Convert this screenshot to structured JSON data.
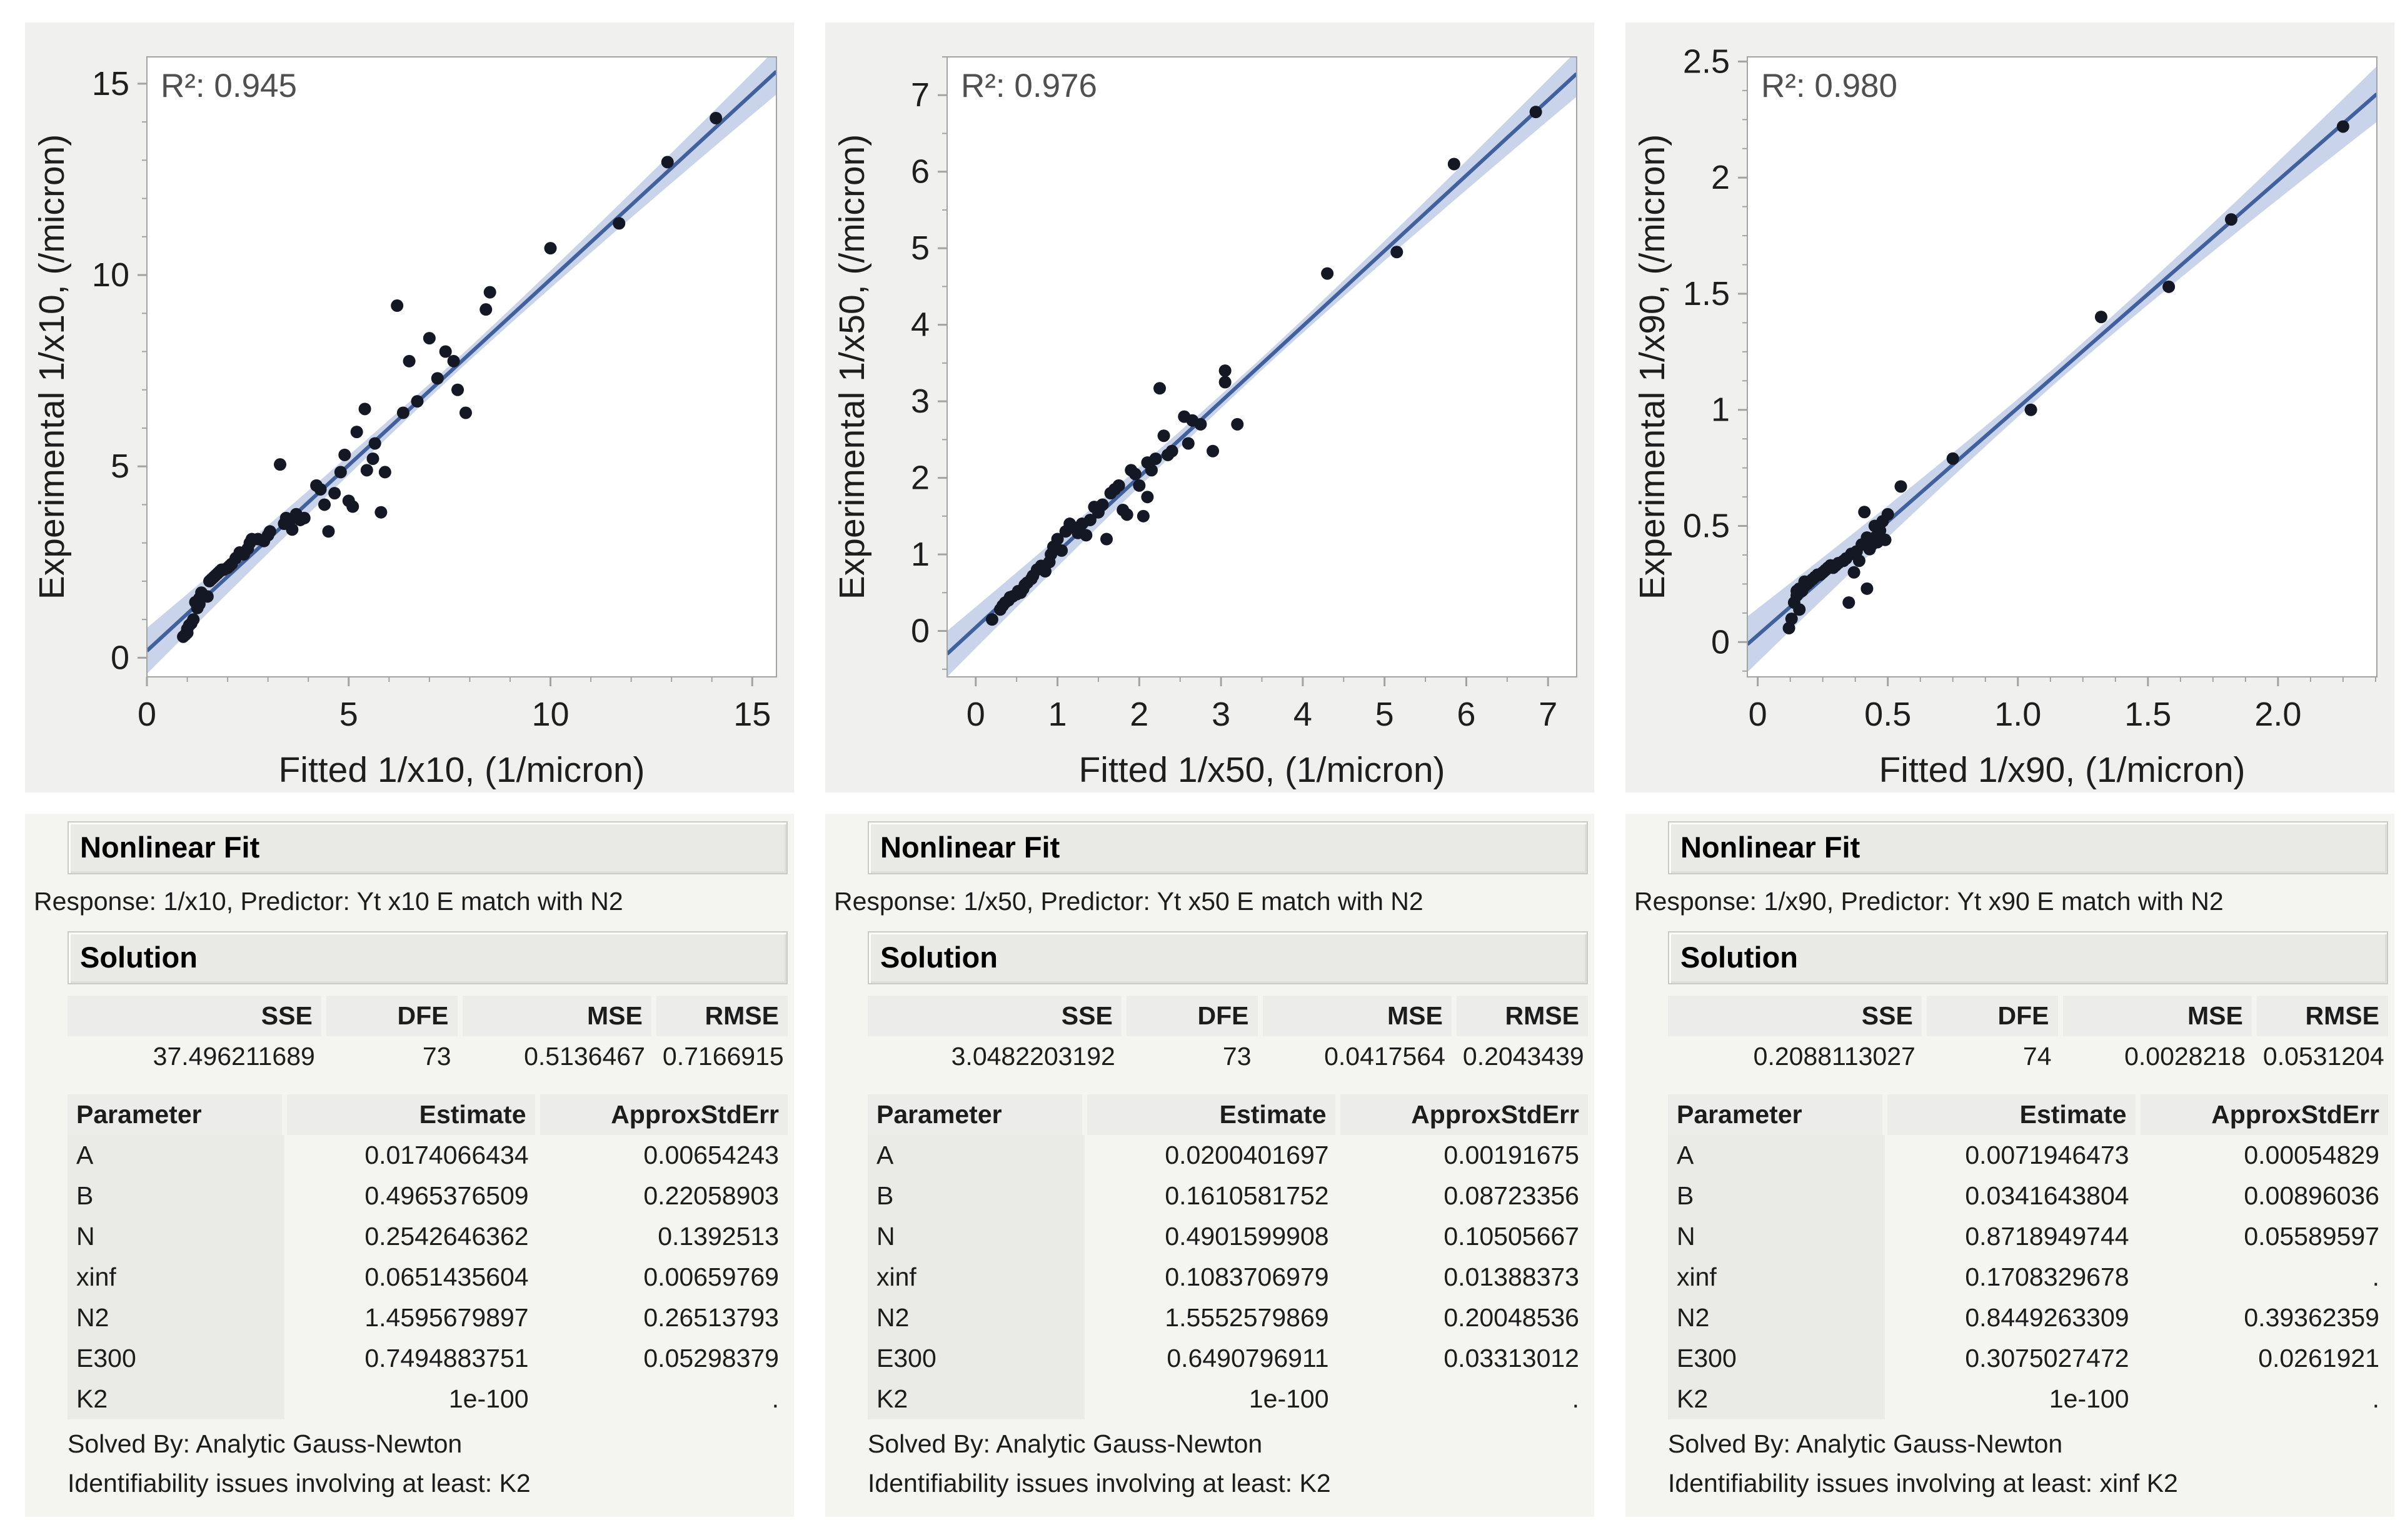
{
  "colors": {
    "fit_line": "#41619e",
    "band": "#c9d4ea",
    "point": "#141824",
    "frame": "#a3a3a1",
    "tick_text": "#1e1e1e",
    "r2_text": "#4f4f4f",
    "chart_bg": "#f0f0ee",
    "panel_bg": "#f4f4f1",
    "bar_bg": "#e9e9e6"
  },
  "chart_data": [
    {
      "type": "scatter",
      "r2_label": "R²: 0.945",
      "xlabel": "Fitted 1/x10, (1/micron)",
      "ylabel": "Experimental 1/x10, (/micron)",
      "x_domain": [
        0,
        15.6
      ],
      "y_domain": [
        -0.5,
        15.7
      ],
      "x_ticks": [
        0,
        5,
        10,
        15
      ],
      "x_tick_labels": [
        "0",
        "5",
        "10",
        "15"
      ],
      "y_ticks": [
        0,
        5,
        10,
        15
      ],
      "y_tick_labels": [
        "0",
        "5",
        "10",
        "15"
      ],
      "minor_step": 1,
      "fit_line": {
        "x1": 0.0,
        "y1": 0.18,
        "x2": 15.6,
        "y2": 15.32
      },
      "band": {
        "mid": 0.17,
        "end": 0.6
      },
      "points": [
        [
          0.9,
          0.55
        ],
        [
          0.95,
          0.6
        ],
        [
          1.0,
          0.65
        ],
        [
          1.0,
          0.75
        ],
        [
          1.05,
          0.85
        ],
        [
          1.1,
          0.9
        ],
        [
          1.15,
          1.0
        ],
        [
          1.2,
          1.45
        ],
        [
          1.25,
          1.3
        ],
        [
          1.3,
          1.4
        ],
        [
          1.3,
          1.55
        ],
        [
          1.35,
          1.7
        ],
        [
          1.5,
          1.6
        ],
        [
          1.55,
          2.0
        ],
        [
          1.6,
          2.05
        ],
        [
          1.65,
          2.1
        ],
        [
          1.7,
          2.15
        ],
        [
          1.75,
          2.2
        ],
        [
          1.8,
          2.25
        ],
        [
          1.85,
          2.3
        ],
        [
          1.9,
          2.3
        ],
        [
          2.0,
          2.35
        ],
        [
          2.05,
          2.4
        ],
        [
          2.1,
          2.45
        ],
        [
          2.2,
          2.6
        ],
        [
          2.3,
          2.75
        ],
        [
          2.4,
          2.7
        ],
        [
          2.5,
          2.85
        ],
        [
          2.55,
          3.0
        ],
        [
          2.6,
          3.1
        ],
        [
          2.75,
          3.1
        ],
        [
          2.9,
          3.05
        ],
        [
          3.0,
          3.2
        ],
        [
          3.05,
          3.3
        ],
        [
          3.3,
          5.05
        ],
        [
          3.4,
          3.5
        ],
        [
          3.45,
          3.65
        ],
        [
          3.55,
          3.6
        ],
        [
          3.6,
          3.35
        ],
        [
          3.7,
          3.75
        ],
        [
          3.8,
          3.6
        ],
        [
          3.9,
          3.65
        ],
        [
          4.2,
          4.5
        ],
        [
          4.3,
          4.4
        ],
        [
          4.4,
          4.0
        ],
        [
          4.5,
          3.3
        ],
        [
          4.65,
          4.3
        ],
        [
          4.8,
          4.85
        ],
        [
          4.9,
          5.3
        ],
        [
          5.0,
          4.1
        ],
        [
          5.1,
          3.95
        ],
        [
          5.2,
          5.9
        ],
        [
          5.4,
          6.5
        ],
        [
          5.45,
          4.9
        ],
        [
          5.6,
          5.2
        ],
        [
          5.65,
          5.6
        ],
        [
          5.8,
          3.8
        ],
        [
          5.9,
          4.85
        ],
        [
          6.2,
          9.2
        ],
        [
          6.35,
          6.4
        ],
        [
          6.5,
          7.75
        ],
        [
          6.7,
          6.7
        ],
        [
          7.0,
          8.35
        ],
        [
          7.2,
          7.3
        ],
        [
          7.4,
          8.0
        ],
        [
          7.6,
          7.75
        ],
        [
          7.7,
          7.0
        ],
        [
          7.9,
          6.4
        ],
        [
          8.4,
          9.1
        ],
        [
          8.5,
          9.55
        ],
        [
          10.0,
          10.7
        ],
        [
          11.7,
          11.35
        ],
        [
          12.9,
          12.95
        ],
        [
          14.1,
          14.1
        ]
      ]
    },
    {
      "type": "scatter",
      "r2_label": "R²: 0.976",
      "xlabel": "Fitted 1/x50, (1/micron)",
      "ylabel": "Experimental 1/x50, (/micron)",
      "x_domain": [
        -0.35,
        7.35
      ],
      "y_domain": [
        -0.6,
        7.5
      ],
      "x_ticks": [
        0,
        1,
        2,
        3,
        4,
        5,
        6,
        7
      ],
      "x_tick_labels": [
        "0",
        "1",
        "2",
        "3",
        "4",
        "5",
        "6",
        "7"
      ],
      "y_ticks": [
        0,
        1,
        2,
        3,
        4,
        5,
        6,
        7
      ],
      "y_tick_labels": [
        "0",
        "1",
        "2",
        "3",
        "4",
        "5",
        "6",
        "7"
      ],
      "minor_step": 0.5,
      "fit_line": {
        "x1": -0.35,
        "y1": -0.3,
        "x2": 7.35,
        "y2": 7.28
      },
      "band": {
        "mid": 0.08,
        "end": 0.3
      },
      "points": [
        [
          0.2,
          0.15
        ],
        [
          0.3,
          0.28
        ],
        [
          0.33,
          0.33
        ],
        [
          0.36,
          0.37
        ],
        [
          0.4,
          0.4
        ],
        [
          0.42,
          0.44
        ],
        [
          0.45,
          0.45
        ],
        [
          0.5,
          0.48
        ],
        [
          0.52,
          0.52
        ],
        [
          0.55,
          0.5
        ],
        [
          0.58,
          0.55
        ],
        [
          0.6,
          0.6
        ],
        [
          0.63,
          0.63
        ],
        [
          0.68,
          0.68
        ],
        [
          0.7,
          0.72
        ],
        [
          0.75,
          0.8
        ],
        [
          0.8,
          0.85
        ],
        [
          0.85,
          0.78
        ],
        [
          0.9,
          0.9
        ],
        [
          0.92,
          1.0
        ],
        [
          0.95,
          1.1
        ],
        [
          1.0,
          1.2
        ],
        [
          1.05,
          1.05
        ],
        [
          1.1,
          1.3
        ],
        [
          1.15,
          1.4
        ],
        [
          1.2,
          1.35
        ],
        [
          1.25,
          1.28
        ],
        [
          1.3,
          1.4
        ],
        [
          1.35,
          1.25
        ],
        [
          1.4,
          1.45
        ],
        [
          1.45,
          1.62
        ],
        [
          1.5,
          1.55
        ],
        [
          1.55,
          1.65
        ],
        [
          1.6,
          1.2
        ],
        [
          1.65,
          1.8
        ],
        [
          1.7,
          1.85
        ],
        [
          1.75,
          1.9
        ],
        [
          1.8,
          1.58
        ],
        [
          1.85,
          1.52
        ],
        [
          1.9,
          2.1
        ],
        [
          1.95,
          2.05
        ],
        [
          2.0,
          1.9
        ],
        [
          2.05,
          1.5
        ],
        [
          2.1,
          2.2
        ],
        [
          2.1,
          1.75
        ],
        [
          2.15,
          2.1
        ],
        [
          2.2,
          2.25
        ],
        [
          2.25,
          3.17
        ],
        [
          2.3,
          2.55
        ],
        [
          2.35,
          2.3
        ],
        [
          2.4,
          2.35
        ],
        [
          2.55,
          2.8
        ],
        [
          2.6,
          2.45
        ],
        [
          2.65,
          2.75
        ],
        [
          2.75,
          2.7
        ],
        [
          2.9,
          2.35
        ],
        [
          3.05,
          3.4
        ],
        [
          3.05,
          3.25
        ],
        [
          3.2,
          2.7
        ],
        [
          4.3,
          4.67
        ],
        [
          5.15,
          4.95
        ],
        [
          5.85,
          6.1
        ],
        [
          6.85,
          6.78
        ]
      ]
    },
    {
      "type": "scatter",
      "r2_label": "R²: 0.980",
      "xlabel": "Fitted 1/x90, (1/micron)",
      "ylabel": "Experimental 1/x90, (/micron)",
      "x_domain": [
        -0.04,
        2.38
      ],
      "y_domain": [
        -0.15,
        2.52
      ],
      "x_ticks": [
        0,
        0.5,
        1.0,
        1.5,
        2.0
      ],
      "x_tick_labels": [
        "0",
        "0.5",
        "1.0",
        "1.5",
        "2.0"
      ],
      "y_ticks": [
        0,
        0.5,
        1,
        1.5,
        2,
        2.5
      ],
      "y_tick_labels": [
        "0",
        "0.5",
        "1",
        "1.5",
        "2",
        "2.5"
      ],
      "minor_step": 0.125,
      "fit_line": {
        "x1": -0.04,
        "y1": -0.01,
        "x2": 2.38,
        "y2": 2.36
      },
      "band": {
        "mid": 0.035,
        "end": 0.12
      },
      "points": [
        [
          0.12,
          0.06
        ],
        [
          0.13,
          0.1
        ],
        [
          0.14,
          0.17
        ],
        [
          0.15,
          0.2
        ],
        [
          0.15,
          0.22
        ],
        [
          0.16,
          0.14
        ],
        [
          0.16,
          0.23
        ],
        [
          0.17,
          0.22
        ],
        [
          0.18,
          0.24
        ],
        [
          0.18,
          0.26
        ],
        [
          0.19,
          0.25
        ],
        [
          0.2,
          0.26
        ],
        [
          0.21,
          0.27
        ],
        [
          0.22,
          0.28
        ],
        [
          0.23,
          0.29
        ],
        [
          0.24,
          0.29
        ],
        [
          0.25,
          0.3
        ],
        [
          0.26,
          0.31
        ],
        [
          0.27,
          0.32
        ],
        [
          0.28,
          0.33
        ],
        [
          0.29,
          0.32
        ],
        [
          0.3,
          0.33
        ],
        [
          0.31,
          0.34
        ],
        [
          0.33,
          0.35
        ],
        [
          0.34,
          0.36
        ],
        [
          0.35,
          0.17
        ],
        [
          0.36,
          0.38
        ],
        [
          0.37,
          0.3
        ],
        [
          0.38,
          0.39
        ],
        [
          0.39,
          0.35
        ],
        [
          0.4,
          0.42
        ],
        [
          0.41,
          0.56
        ],
        [
          0.42,
          0.23
        ],
        [
          0.42,
          0.45
        ],
        [
          0.43,
          0.4
        ],
        [
          0.44,
          0.42
        ],
        [
          0.45,
          0.45
        ],
        [
          0.45,
          0.5
        ],
        [
          0.46,
          0.43
        ],
        [
          0.47,
          0.48
        ],
        [
          0.48,
          0.52
        ],
        [
          0.49,
          0.44
        ],
        [
          0.5,
          0.55
        ],
        [
          0.55,
          0.67
        ],
        [
          0.75,
          0.79
        ],
        [
          1.05,
          1.0
        ],
        [
          1.32,
          1.4
        ],
        [
          1.58,
          1.53
        ],
        [
          1.82,
          1.82
        ],
        [
          2.25,
          2.22
        ]
      ]
    }
  ],
  "panels": [
    {
      "fit": {
        "title": "Nonlinear Fit",
        "response": "Response: 1/x10, Predictor: Yt x10 E match with N2",
        "solution_title": "Solution",
        "stats": {
          "headers": [
            "SSE",
            "DFE",
            "MSE",
            "RMSE"
          ],
          "values": [
            "37.496211689",
            "73",
            "0.5136467",
            "0.7166915"
          ]
        },
        "param_headers": [
          "Parameter",
          "Estimate",
          "ApproxStdErr"
        ],
        "params": [
          {
            "name": "A",
            "estimate": "0.0174066434",
            "stderr": "0.00654243"
          },
          {
            "name": "B",
            "estimate": "0.4965376509",
            "stderr": "0.22058903"
          },
          {
            "name": "N",
            "estimate": "0.2542646362",
            "stderr": "0.1392513"
          },
          {
            "name": "xinf",
            "estimate": "0.0651435604",
            "stderr": "0.00659769"
          },
          {
            "name": "N2",
            "estimate": "1.4595679897",
            "stderr": "0.26513793"
          },
          {
            "name": "E300",
            "estimate": "0.7494883751",
            "stderr": "0.05298379"
          },
          {
            "name": "K2",
            "estimate": "1e-100",
            "stderr": "."
          }
        ],
        "solved_by": "Solved By: Analytic Gauss-Newton",
        "identifiability": "Identifiability issues involving at least: K2"
      }
    },
    {
      "fit": {
        "title": "Nonlinear Fit",
        "response": "Response: 1/x50, Predictor: Yt x50 E match with N2",
        "solution_title": "Solution",
        "stats": {
          "headers": [
            "SSE",
            "DFE",
            "MSE",
            "RMSE"
          ],
          "values": [
            "3.0482203192",
            "73",
            "0.0417564",
            "0.2043439"
          ]
        },
        "param_headers": [
          "Parameter",
          "Estimate",
          "ApproxStdErr"
        ],
        "params": [
          {
            "name": "A",
            "estimate": "0.0200401697",
            "stderr": "0.00191675"
          },
          {
            "name": "B",
            "estimate": "0.1610581752",
            "stderr": "0.08723356"
          },
          {
            "name": "N",
            "estimate": "0.4901599908",
            "stderr": "0.10505667"
          },
          {
            "name": "xinf",
            "estimate": "0.1083706979",
            "stderr": "0.01388373"
          },
          {
            "name": "N2",
            "estimate": "1.5552579869",
            "stderr": "0.20048536"
          },
          {
            "name": "E300",
            "estimate": "0.6490796911",
            "stderr": "0.03313012"
          },
          {
            "name": "K2",
            "estimate": "1e-100",
            "stderr": "."
          }
        ],
        "solved_by": "Solved By: Analytic Gauss-Newton",
        "identifiability": "Identifiability issues involving at least: K2"
      }
    },
    {
      "fit": {
        "title": "Nonlinear Fit",
        "response": "Response: 1/x90, Predictor: Yt x90 E match with N2",
        "solution_title": "Solution",
        "stats": {
          "headers": [
            "SSE",
            "DFE",
            "MSE",
            "RMSE"
          ],
          "values": [
            "0.2088113027",
            "74",
            "0.0028218",
            "0.0531204"
          ]
        },
        "param_headers": [
          "Parameter",
          "Estimate",
          "ApproxStdErr"
        ],
        "params": [
          {
            "name": "A",
            "estimate": "0.0071946473",
            "stderr": "0.00054829"
          },
          {
            "name": "B",
            "estimate": "0.0341643804",
            "stderr": "0.00896036"
          },
          {
            "name": "N",
            "estimate": "0.8718949744",
            "stderr": "0.05589597"
          },
          {
            "name": "xinf",
            "estimate": "0.1708329678",
            "stderr": "."
          },
          {
            "name": "N2",
            "estimate": "0.8449263309",
            "stderr": "0.39362359"
          },
          {
            "name": "E300",
            "estimate": "0.3075027472",
            "stderr": "0.0261921"
          },
          {
            "name": "K2",
            "estimate": "1e-100",
            "stderr": "."
          }
        ],
        "solved_by": "Solved By: Analytic Gauss-Newton",
        "identifiability": "Identifiability issues involving at least: xinf K2"
      }
    }
  ]
}
